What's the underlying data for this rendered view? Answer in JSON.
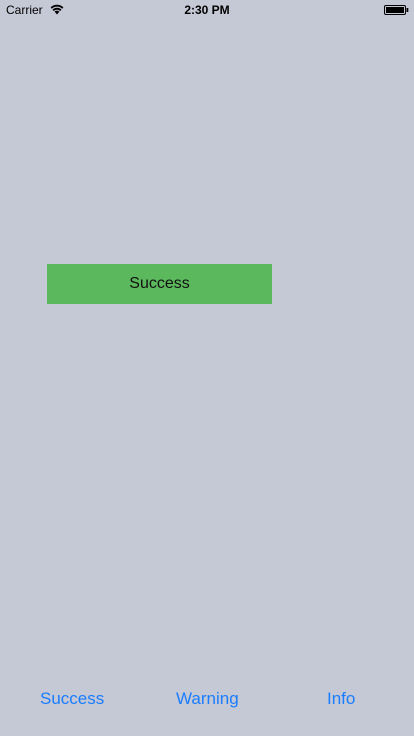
{
  "status_bar": {
    "carrier": "Carrier",
    "time": "2:30 PM",
    "wifi_icon": "wifi-icon",
    "battery_icon": "battery-icon"
  },
  "alert": {
    "text": "Success",
    "color": "#5cb85c"
  },
  "toolbar": {
    "success_label": "Success",
    "warning_label": "Warning",
    "info_label": "Info",
    "tint_color": "#1a7dff"
  },
  "background_color": "#c5c8d5"
}
